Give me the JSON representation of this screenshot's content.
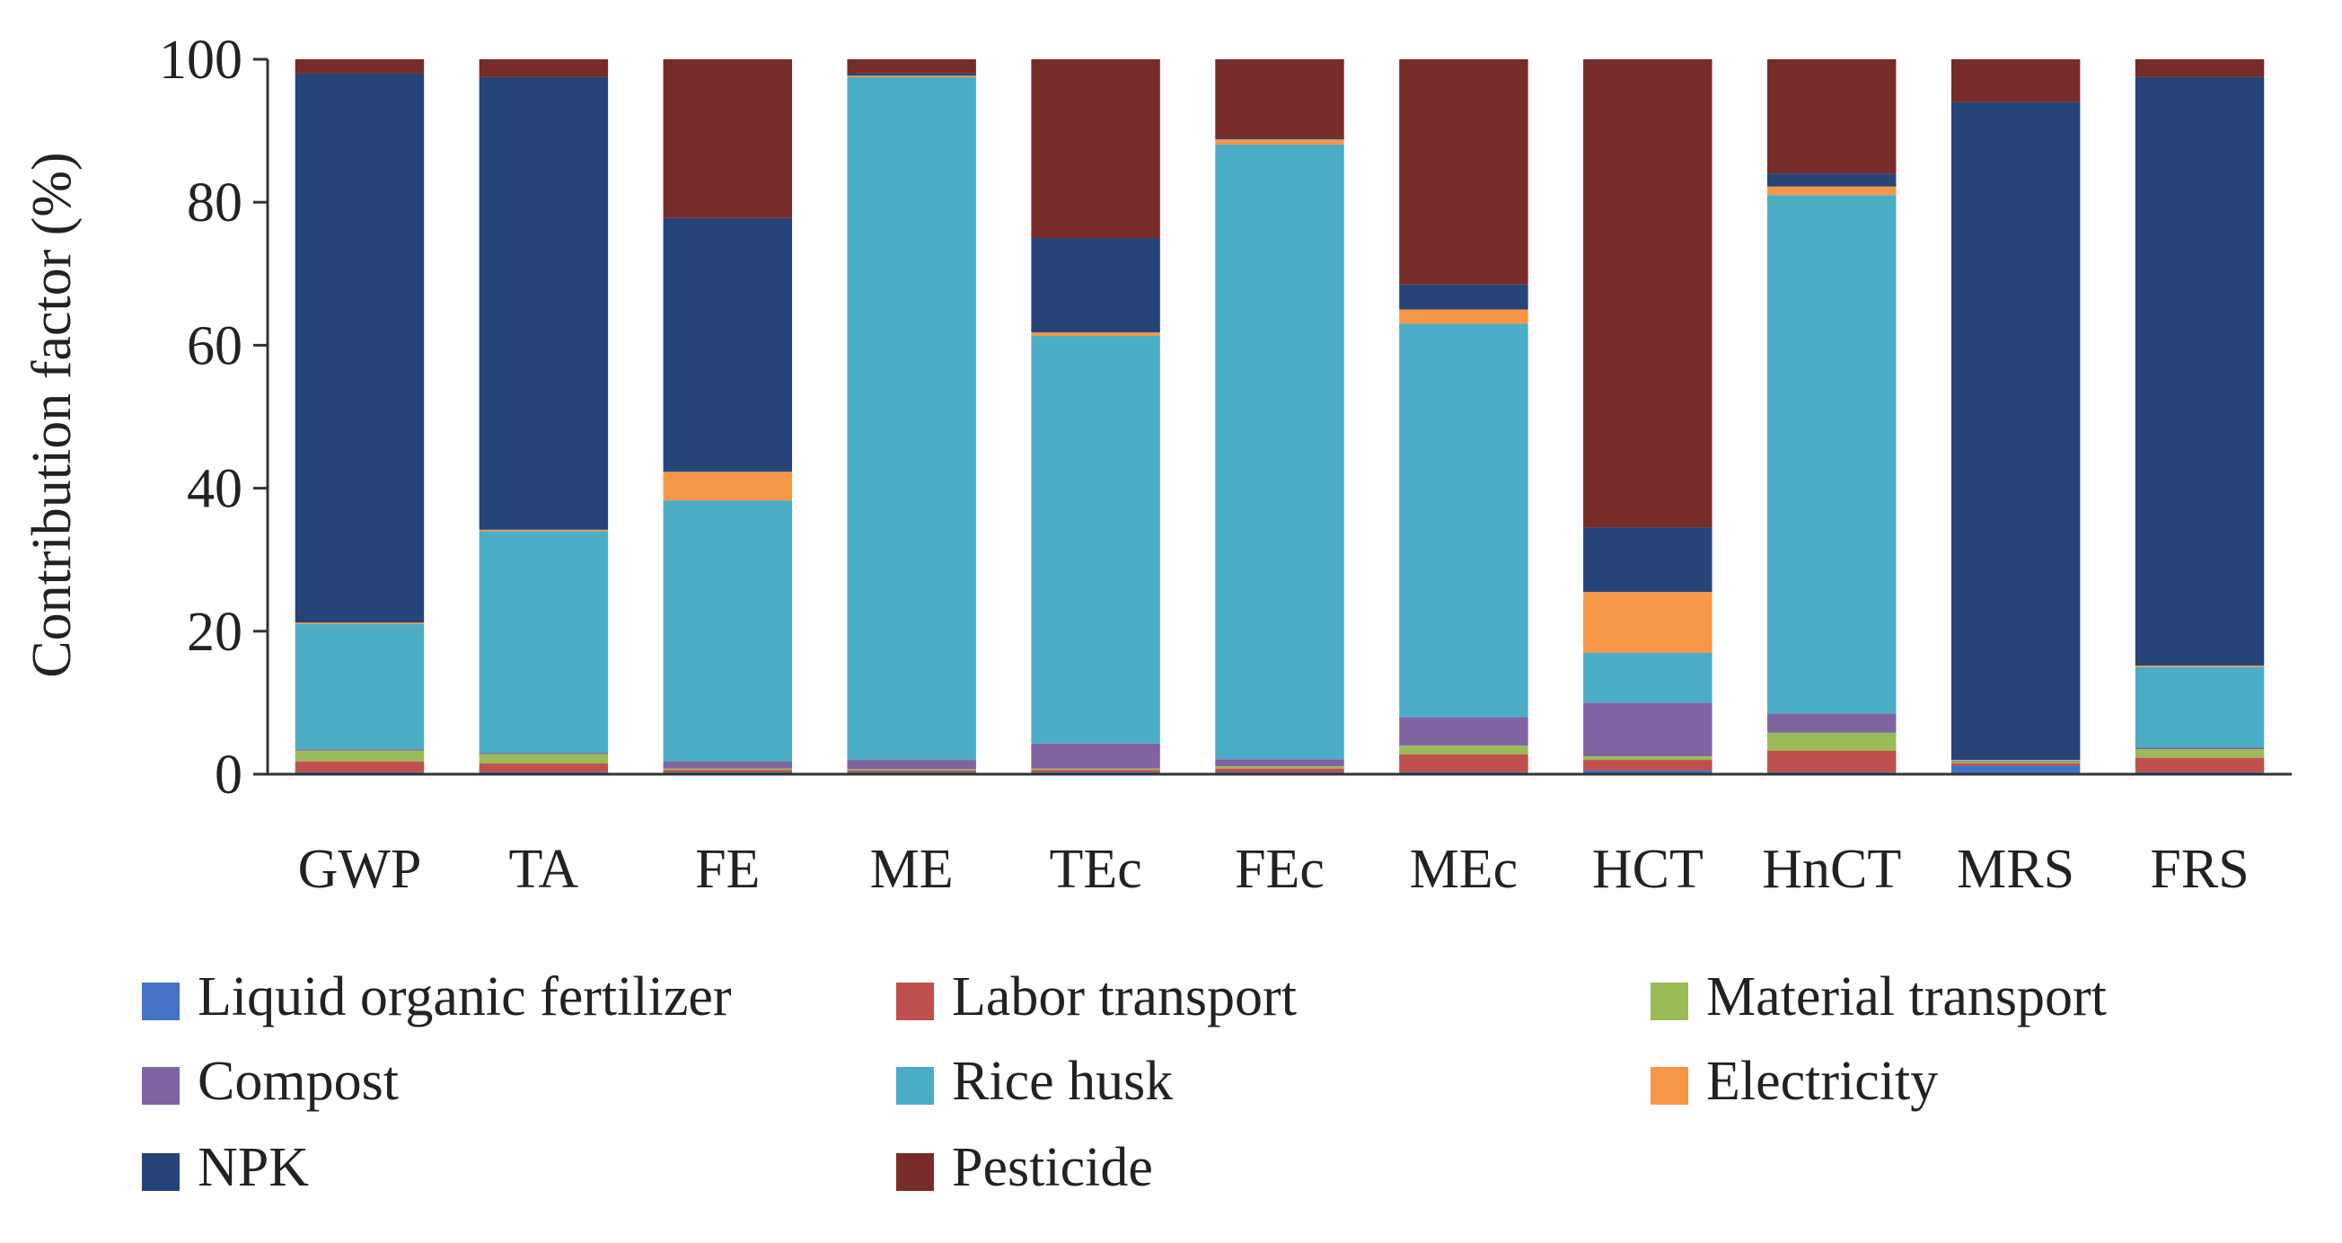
{
  "chart_data": {
    "type": "bar",
    "stacked": true,
    "title": "",
    "xlabel": "",
    "ylabel": "Contribution factor (%)",
    "ylim": [
      0,
      100
    ],
    "yticks": [
      0,
      20,
      40,
      60,
      80,
      100
    ],
    "legend_position": "bottom",
    "categories": [
      "GWP",
      "TA",
      "FE",
      "ME",
      "TEc",
      "FEc",
      "MEc",
      "HCT",
      "HnCT",
      "MRS",
      "FRS"
    ],
    "series": [
      {
        "name": "Liquid organic fertilizer",
        "color": "#4472C4",
        "values": [
          0.3,
          0.3,
          0.3,
          0.3,
          0.3,
          0.3,
          0.3,
          0.5,
          0.3,
          1.2,
          0.3
        ]
      },
      {
        "name": "Labor transport",
        "color": "#C0504D",
        "values": [
          1.5,
          1.2,
          0.3,
          0.2,
          0.3,
          0.5,
          2.5,
          1.5,
          3.0,
          0.3,
          2.0
        ]
      },
      {
        "name": "Material transport",
        "color": "#9BBB59",
        "values": [
          1.5,
          1.3,
          0.2,
          0.2,
          0.2,
          0.3,
          1.2,
          0.5,
          2.5,
          0.2,
          1.2
        ]
      },
      {
        "name": "Compost",
        "color": "#8064A2",
        "values": [
          0.2,
          0.2,
          1.0,
          1.3,
          3.5,
          1.0,
          4.0,
          7.5,
          2.7,
          0.1,
          0.2
        ]
      },
      {
        "name": "Rice husk",
        "color": "#4BACC6",
        "values": [
          17.5,
          31.0,
          36.5,
          95.5,
          57.0,
          86.0,
          55.0,
          7.0,
          72.5,
          0.1,
          11.3
        ]
      },
      {
        "name": "Electricity",
        "color": "#F79646",
        "values": [
          0.2,
          0.2,
          4.0,
          0.2,
          0.5,
          0.7,
          2.0,
          8.5,
          1.2,
          0.1,
          0.2
        ]
      },
      {
        "name": "NPK",
        "color": "#264478",
        "values": [
          76.8,
          63.3,
          35.5,
          0.3,
          13.2,
          0.2,
          3.5,
          9.0,
          1.8,
          92.0,
          82.3
        ]
      },
      {
        "name": "Pesticide",
        "color": "#772C2A",
        "values": [
          2.0,
          2.5,
          22.2,
          2.0,
          25.0,
          11.0,
          31.5,
          65.5,
          16.0,
          6.0,
          2.5
        ]
      }
    ]
  }
}
